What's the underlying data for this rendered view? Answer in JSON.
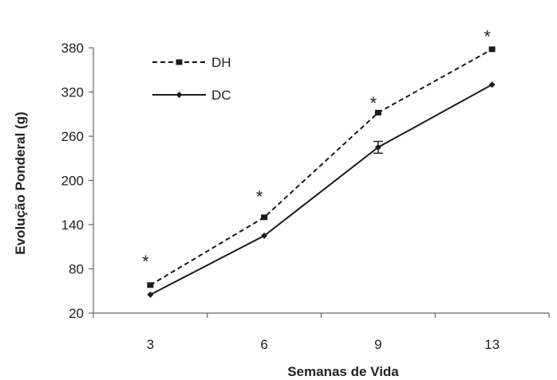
{
  "chart_data": {
    "type": "line",
    "xlabel": "Semanas de Vida",
    "ylabel": "Evolução Ponderal (g)",
    "categories": [
      "3",
      "6",
      "9",
      "13"
    ],
    "yticks": [
      20,
      80,
      140,
      200,
      260,
      320,
      380
    ],
    "ylim": [
      20,
      380
    ],
    "legend_position": "top-left",
    "series": [
      {
        "name": "DH",
        "values": [
          58,
          150,
          292,
          378
        ],
        "line_style": "dashed",
        "marker": "square"
      },
      {
        "name": "DC",
        "values": [
          45,
          125,
          245,
          330
        ],
        "errors": [
          0,
          0,
          8,
          0
        ],
        "line_style": "solid",
        "marker": "diamond"
      }
    ],
    "significance": [
      {
        "category": "3",
        "y": 97,
        "label": "*"
      },
      {
        "category": "6",
        "y": 185,
        "label": "*"
      },
      {
        "category": "9",
        "y": 312,
        "label": "*"
      },
      {
        "category": "13",
        "y": 402,
        "label": "*"
      }
    ],
    "colors": {
      "line": "#1a1a1a",
      "axis": "#666666",
      "text": "#222222"
    }
  }
}
